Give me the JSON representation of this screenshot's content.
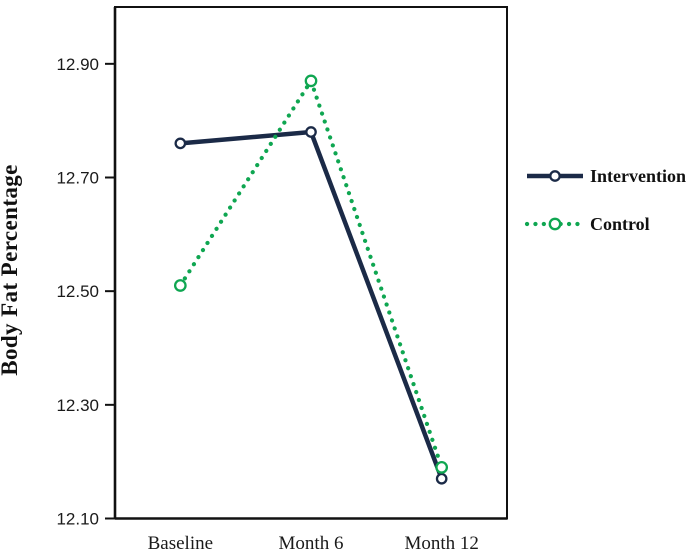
{
  "figure": {
    "background": "#FFFFFF",
    "axis_color": "#111111",
    "text_color": "#1A1A1A"
  },
  "chart_data": {
    "type": "line",
    "title": "",
    "xlabel": "",
    "ylabel": "Body Fat Percentage",
    "categories": [
      "Baseline",
      "Month 6",
      "Month 12"
    ],
    "series": [
      {
        "name": "Intervention",
        "values": [
          12.76,
          12.78,
          12.17
        ],
        "color": "#1B2A47",
        "line_style": "solid",
        "marker": "open-circle"
      },
      {
        "name": "Control",
        "values": [
          12.51,
          12.87,
          12.19
        ],
        "color": "#0FA651",
        "line_style": "dotted",
        "marker": "open-circle"
      }
    ],
    "ylim": [
      12.1,
      13.0
    ],
    "ytick_labels": [
      "12.90",
      "12.70",
      "12.50",
      "12.30",
      "12.10"
    ],
    "ytick_values": [
      12.9,
      12.7,
      12.5,
      12.3,
      12.1
    ],
    "grid": false,
    "legend_position": "right-center"
  }
}
